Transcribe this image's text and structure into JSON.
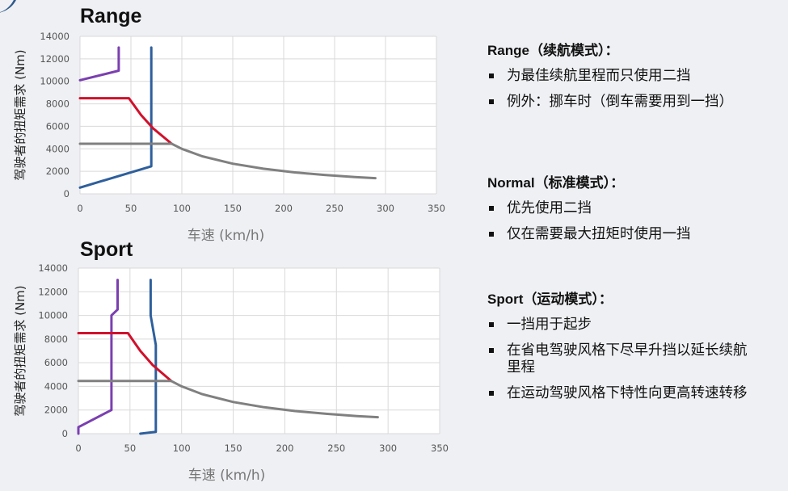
{
  "chart_data": [
    {
      "type": "line",
      "title": "Range",
      "xlabel": "车速 (km/h)",
      "ylabel": "驾驶者的扭矩需求 (Nm)",
      "xlim": [
        0,
        350
      ],
      "ylim": [
        0,
        14000
      ],
      "xticks": [
        "0",
        "50",
        "100",
        "150",
        "200",
        "250",
        "300",
        "350"
      ],
      "yticks": [
        "0",
        "2000",
        "4000",
        "6000",
        "8000",
        "10000",
        "12000",
        "14000"
      ],
      "grid": true,
      "series": [
        {
          "color": "#7b3fb0",
          "points": [
            [
              0,
              10100
            ],
            [
              38,
              10950
            ],
            [
              38,
              13000
            ]
          ]
        },
        {
          "color": "#2e5f9c",
          "points": [
            [
              0,
              550
            ],
            [
              70,
              2450
            ],
            [
              70,
              13000
            ]
          ]
        },
        {
          "color": "#d0112b",
          "points": [
            [
              0,
              8500
            ],
            [
              48,
              8500
            ],
            [
              60,
              7000
            ],
            [
              72,
              5800
            ],
            [
              90,
              4450
            ]
          ]
        },
        {
          "color": "#808080",
          "points": [
            [
              0,
              4450
            ],
            [
              90,
              4450
            ],
            [
              100,
              4000
            ],
            [
              120,
              3340
            ],
            [
              150,
              2680
            ],
            [
              180,
              2230
            ],
            [
              210,
              1910
            ],
            [
              240,
              1680
            ],
            [
              270,
              1490
            ],
            [
              290,
              1390
            ]
          ]
        }
      ]
    },
    {
      "type": "line",
      "title": "Sport",
      "xlabel": "车速 (km/h)",
      "ylabel": "驾驶者的扭矩需求 (Nm)",
      "xlim": [
        0,
        350
      ],
      "ylim": [
        0,
        14000
      ],
      "xticks": [
        "0",
        "50",
        "100",
        "150",
        "200",
        "250",
        "300",
        "350"
      ],
      "yticks": [
        "0",
        "2000",
        "4000",
        "6000",
        "8000",
        "10000",
        "12000",
        "14000"
      ],
      "grid": true,
      "series": [
        {
          "color": "#7b3fb0",
          "points": [
            [
              0,
              0
            ],
            [
              0,
              550
            ],
            [
              32,
              2000
            ],
            [
              32,
              10000
            ],
            [
              38,
              10500
            ],
            [
              38,
              13000
            ]
          ]
        },
        {
          "color": "#2e5f9c",
          "points": [
            [
              60,
              0
            ],
            [
              75,
              150
            ],
            [
              75,
              7500
            ],
            [
              70,
              10000
            ],
            [
              70,
              13000
            ]
          ]
        },
        {
          "color": "#d0112b",
          "points": [
            [
              0,
              8500
            ],
            [
              48,
              8500
            ],
            [
              60,
              7000
            ],
            [
              72,
              5800
            ],
            [
              90,
              4450
            ]
          ]
        },
        {
          "color": "#808080",
          "points": [
            [
              0,
              4450
            ],
            [
              90,
              4450
            ],
            [
              100,
              4000
            ],
            [
              120,
              3340
            ],
            [
              150,
              2680
            ],
            [
              180,
              2230
            ],
            [
              210,
              1910
            ],
            [
              240,
              1680
            ],
            [
              270,
              1490
            ],
            [
              290,
              1390
            ]
          ]
        }
      ]
    }
  ],
  "panels": [
    {
      "title": "Range（续航模式）：",
      "items": [
        "为最佳续航里程而只使用二挡",
        "例外：挪车时（倒车需要用到一挡）"
      ]
    },
    {
      "title": "Normal（标准模式）：",
      "items": [
        "优先使用二挡",
        "仅在需要最大扭矩时使用一挡"
      ]
    },
    {
      "title": "Sport（运动模式）：",
      "items": [
        "一挡用于起步",
        "在省电驾驶风格下尽早升挡以延长续航里程",
        "在运动驾驶风格下特性向更高转速转移"
      ]
    }
  ]
}
